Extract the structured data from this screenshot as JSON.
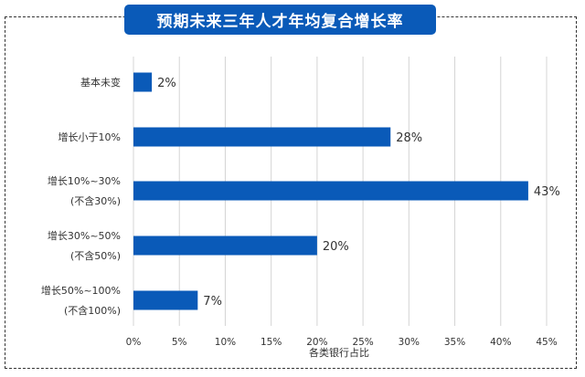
{
  "colors": {
    "bar": "#0a5ab8",
    "title_bg": "#0a5ab8",
    "grid": "#d4d4d4",
    "text": "#333333"
  },
  "chart_data": {
    "type": "bar",
    "orientation": "horizontal",
    "title": "预期未来三年人才年均复合增长率",
    "xlabel": "各类银行占比",
    "ylabel": "",
    "categories": [
      [
        "基本未变"
      ],
      [
        "增长小于10%"
      ],
      [
        "增长10%~30%",
        "(不含30%)"
      ],
      [
        "增长30%~50%",
        "(不含50%)"
      ],
      [
        "增长50%~100%",
        "(不含100%)"
      ]
    ],
    "values": [
      2,
      28,
      43,
      20,
      7
    ],
    "data_labels": [
      "2%",
      "28%",
      "43%",
      "20%",
      "7%"
    ],
    "xlim": [
      0,
      45
    ],
    "xticks": [
      0,
      5,
      10,
      15,
      20,
      25,
      30,
      35,
      40,
      45
    ],
    "xtick_labels": [
      "0%",
      "5%",
      "10%",
      "15%",
      "20%",
      "25%",
      "30%",
      "35%",
      "40%",
      "45%"
    ],
    "grid": "vertical",
    "legend": "none"
  }
}
